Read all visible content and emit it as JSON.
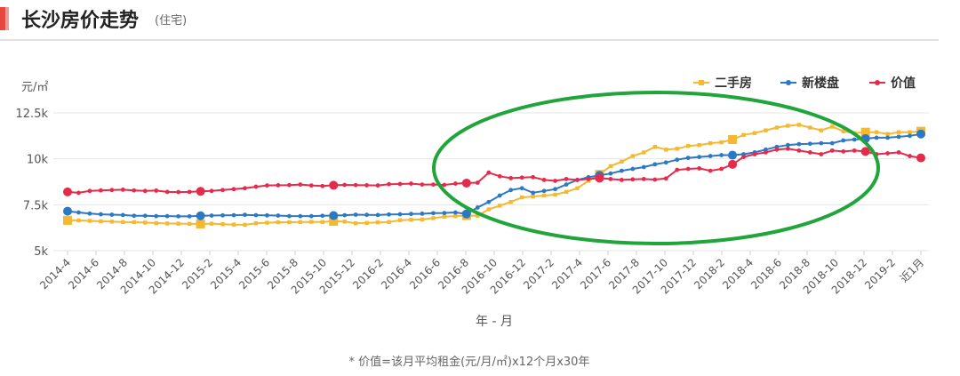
{
  "header": {
    "title": "长沙房价走势",
    "subtitle": "(住宅)"
  },
  "footnote": "* 价值=该月平均租金(元/月/㎡)x12个月x30年",
  "chart_data": {
    "type": "line",
    "ylabel": "元/㎡",
    "xlabel": "年 - 月",
    "ylim": [
      5000,
      12500
    ],
    "yticks": [
      {
        "value": 5000,
        "label": "5k"
      },
      {
        "value": 7500,
        "label": "7.5k"
      },
      {
        "value": 10000,
        "label": "10k"
      },
      {
        "value": 12500,
        "label": "12.5k"
      }
    ],
    "grid": "horizontal",
    "legend_position": "top-right",
    "x_tick_labels": [
      "2014-4",
      "2014-6",
      "2014-8",
      "2014-10",
      "2014-12",
      "2015-2",
      "2015-4",
      "2015-6",
      "2015-8",
      "2015-10",
      "2015-12",
      "2016-2",
      "2016-4",
      "2016-6",
      "2016-8",
      "2016-10",
      "2016-12",
      "2017-2",
      "2017-4",
      "2017-6",
      "2017-8",
      "2017-10",
      "2017-12",
      "2018-2",
      "2018-4",
      "2018-6",
      "2018-8",
      "2018-10",
      "2018-12",
      "2019-2",
      "近1月"
    ],
    "series": [
      {
        "name": "二手房",
        "color": "#f5b82e",
        "marker": "square",
        "highlight_every": 12,
        "values": [
          6650,
          6650,
          6620,
          6600,
          6580,
          6560,
          6550,
          6530,
          6500,
          6480,
          6470,
          6460,
          6450,
          6470,
          6440,
          6420,
          6410,
          6490,
          6520,
          6550,
          6550,
          6560,
          6570,
          6560,
          6600,
          6580,
          6490,
          6510,
          6540,
          6560,
          6660,
          6680,
          6700,
          6770,
          6850,
          6880,
          6910,
          6900,
          7250,
          7450,
          7650,
          7900,
          7950,
          8000,
          8050,
          8200,
          8400,
          8800,
          9150,
          9600,
          9850,
          10150,
          10350,
          10650,
          10500,
          10550,
          10700,
          10750,
          10850,
          10900,
          11050,
          11300,
          11400,
          11550,
          11700,
          11800,
          11850,
          11700,
          11550,
          11750,
          11500,
          11400,
          11450,
          11450,
          11350,
          11450,
          11450,
          11500
        ]
      },
      {
        "name": "新楼盘",
        "color": "#2b78c5",
        "marker": "circle",
        "highlight_every": 12,
        "values": [
          7150,
          7080,
          7020,
          6980,
          6960,
          6940,
          6900,
          6900,
          6880,
          6880,
          6870,
          6870,
          6900,
          6910,
          6920,
          6930,
          6950,
          6930,
          6920,
          6910,
          6880,
          6880,
          6880,
          6900,
          6910,
          6930,
          6960,
          6950,
          6940,
          6970,
          6980,
          7000,
          7010,
          7040,
          7050,
          7080,
          7000,
          7350,
          7650,
          8000,
          8300,
          8400,
          8150,
          8250,
          8350,
          8600,
          8850,
          9000,
          9100,
          9200,
          9350,
          9450,
          9550,
          9700,
          9800,
          9950,
          10050,
          10100,
          10150,
          10200,
          10200,
          10250,
          10350,
          10500,
          10650,
          10750,
          10800,
          10820,
          10850,
          10850,
          11000,
          11050,
          11100,
          11150,
          11150,
          11200,
          11250,
          11350
        ]
      },
      {
        "name": "价值",
        "color": "#e52a4a",
        "marker": "circle",
        "highlight_every": 12,
        "values": [
          8200,
          8150,
          8250,
          8280,
          8300,
          8320,
          8280,
          8250,
          8270,
          8200,
          8190,
          8200,
          8230,
          8250,
          8300,
          8350,
          8400,
          8480,
          8550,
          8560,
          8570,
          8600,
          8550,
          8520,
          8560,
          8580,
          8570,
          8560,
          8550,
          8620,
          8630,
          8650,
          8600,
          8600,
          8580,
          8650,
          8680,
          8700,
          9250,
          9050,
          8950,
          8980,
          9000,
          8850,
          8800,
          8900,
          8850,
          8900,
          8950,
          8900,
          8850,
          8880,
          8900,
          8870,
          8930,
          9400,
          9450,
          9480,
          9350,
          9450,
          9700,
          10100,
          10250,
          10350,
          10500,
          10550,
          10450,
          10350,
          10250,
          10450,
          10400,
          10450,
          10400,
          10250,
          10300,
          10350,
          10150,
          10050
        ]
      }
    ]
  },
  "annotation": {
    "shape": "ellipse",
    "color": "#1fa53a"
  }
}
